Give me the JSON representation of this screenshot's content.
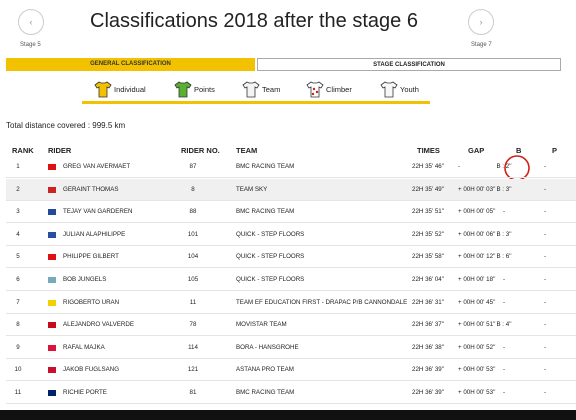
{
  "header": {
    "title": "Classifications 2018 after the stage 6",
    "prev": "Stage 5",
    "next": "Stage 7"
  },
  "tabs": [
    "GENERAL CLASSIFICATION",
    "STAGE CLASSIFICATION"
  ],
  "subtabs": [
    "Individual",
    "Points",
    "Team",
    "Climber",
    "Youth"
  ],
  "distance": "Total distance covered : 999.5 km",
  "table": {
    "columns": [
      "RANK",
      "RIDER",
      "RIDER NO.",
      "TEAM",
      "TIMES",
      "GAP",
      "B",
      "P"
    ],
    "rows": [
      [
        1,
        "GREG VAN AVERMAET",
        87,
        "BMC RACING TEAM",
        "22H 35' 46''",
        "-",
        "B : 2''",
        "-"
      ],
      [
        2,
        "GERAINT THOMAS",
        8,
        "TEAM SKY",
        "22H 35' 49''",
        "+ 00H 00' 03''",
        "B : 3''",
        "-"
      ],
      [
        3,
        "TEJAY VAN GARDEREN",
        88,
        "BMC RACING TEAM",
        "22H 35' 51''",
        "+ 00H 00' 05''",
        "-",
        "-"
      ],
      [
        4,
        "JULIAN ALAPHILIPPE",
        101,
        "QUICK - STEP FLOORS",
        "22H 35' 52''",
        "+ 00H 00' 06''",
        "B : 3''",
        "-"
      ],
      [
        5,
        "PHILIPPE GILBERT",
        104,
        "QUICK - STEP FLOORS",
        "22H 35' 58''",
        "+ 00H 00' 12''",
        "B : 6''",
        "-"
      ],
      [
        6,
        "BOB JUNGELS",
        105,
        "QUICK - STEP FLOORS",
        "22H 36' 04''",
        "+ 00H 00' 18''",
        "-",
        "-"
      ],
      [
        7,
        "RIGOBERTO URAN",
        11,
        "TEAM EF EDUCATION FIRST - DRAPAC P/B CANNONDALE",
        "22H 36' 31''",
        "+ 00H 00' 45''",
        "-",
        "-"
      ],
      [
        8,
        "ALEJANDRO VALVERDE",
        78,
        "MOVISTAR TEAM",
        "22H 36' 37''",
        "+ 00H 00' 51''",
        "B : 4''",
        "-"
      ],
      [
        9,
        "RAFAL MAJKA",
        114,
        "BORA - HANSGROHE",
        "22H 36' 38''",
        "+ 00H 00' 52''",
        "-",
        "-"
      ],
      [
        10,
        "JAKOB FUGLSANG",
        121,
        "ASTANA PRO TEAM",
        "22H 36' 39''",
        "+ 00H 00' 53''",
        "-",
        "-"
      ],
      [
        11,
        "RICHIE PORTE",
        81,
        "BMC RACING TEAM",
        "22H 36' 39''",
        "+ 00H 00' 53''",
        "-",
        "-"
      ]
    ]
  }
}
